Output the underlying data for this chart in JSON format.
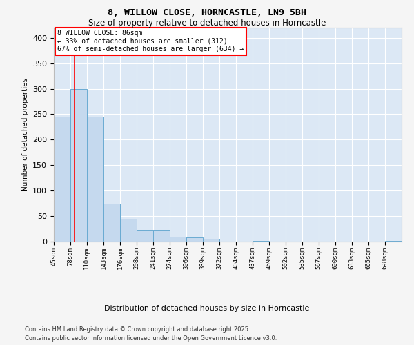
{
  "title_line1": "8, WILLOW CLOSE, HORNCASTLE, LN9 5BH",
  "title_line2": "Size of property relative to detached houses in Horncastle",
  "xlabel": "Distribution of detached houses by size in Horncastle",
  "ylabel": "Number of detached properties",
  "bin_labels": [
    "45sqm",
    "78sqm",
    "110sqm",
    "143sqm",
    "176sqm",
    "208sqm",
    "241sqm",
    "274sqm",
    "306sqm",
    "339sqm",
    "372sqm",
    "404sqm",
    "437sqm",
    "469sqm",
    "502sqm",
    "535sqm",
    "567sqm",
    "600sqm",
    "633sqm",
    "665sqm",
    "698sqm"
  ],
  "bin_edges": [
    45,
    78,
    110,
    143,
    176,
    208,
    241,
    274,
    306,
    339,
    372,
    404,
    437,
    469,
    502,
    535,
    567,
    600,
    633,
    665,
    698,
    731
  ],
  "bar_heights": [
    245,
    300,
    245,
    75,
    45,
    22,
    22,
    10,
    8,
    5,
    0,
    0,
    2,
    0,
    0,
    0,
    0,
    0,
    0,
    0,
    2
  ],
  "bar_color": "#c5d9ee",
  "bar_edge_color": "#6aabd2",
  "red_line_x": 86,
  "annotation_text": "8 WILLOW CLOSE: 86sqm\n← 33% of detached houses are smaller (312)\n67% of semi-detached houses are larger (634) →",
  "ylim": [
    0,
    420
  ],
  "yticks": [
    0,
    50,
    100,
    150,
    200,
    250,
    300,
    350,
    400
  ],
  "plot_bg": "#dce8f5",
  "grid_color": "#ffffff",
  "fig_bg": "#f5f5f5",
  "footer_line1": "Contains HM Land Registry data © Crown copyright and database right 2025.",
  "footer_line2": "Contains public sector information licensed under the Open Government Licence v3.0."
}
